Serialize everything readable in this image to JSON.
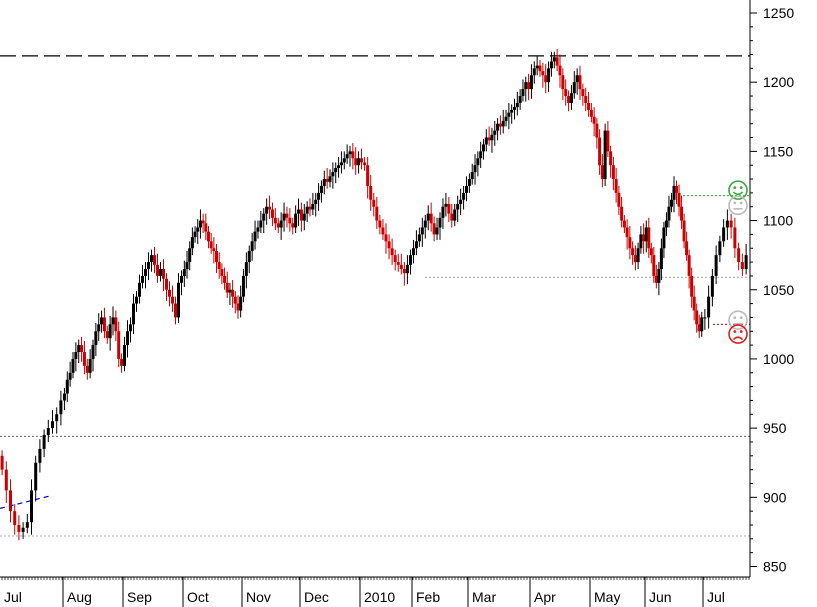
{
  "chart_data": {
    "type": "candlestick",
    "title": "",
    "xlabel": "",
    "ylabel": "",
    "ylim": [
      845,
      1262
    ],
    "y_ticks": [
      850,
      900,
      950,
      1000,
      1050,
      1100,
      1150,
      1200,
      1250
    ],
    "y_tick_labels": [
      "850",
      "900",
      "950",
      "1000",
      "1050",
      "1100",
      "1150",
      "1200",
      "1250"
    ],
    "x_tick_labels": [
      "Jul",
      "Aug",
      "Sep",
      "Oct",
      "Nov",
      "Dec",
      "2010",
      "Feb",
      "Mar",
      "Apr",
      "May",
      "Jun",
      "Jul"
    ],
    "grid": false,
    "colors": {
      "up": "#000000",
      "down": "#cc0000",
      "background": "#ffffff"
    },
    "horizontal_levels": [
      {
        "value": 1219,
        "style": "long-dash",
        "color": "#000000"
      },
      {
        "value": 1118,
        "style": "dotted",
        "color": "#3aa83a"
      },
      {
        "value": 1059,
        "style": "dotted",
        "color": "#aaaaaa"
      },
      {
        "value": 1025,
        "style": "dotted",
        "color": "#cc0000"
      },
      {
        "value": 944,
        "style": "dotted",
        "color": "#666666"
      },
      {
        "value": 872,
        "style": "dotted",
        "color": "#aaaaaa"
      }
    ],
    "trend_segment": {
      "from": 892,
      "to": 901,
      "color": "#0000cc",
      "style": "dashed"
    },
    "markers": [
      {
        "icon": "happy-face-icon",
        "value": 1122,
        "color": "#3aa83a"
      },
      {
        "icon": "neutral-face-icon",
        "value": 1111,
        "color": "#bbbbbb"
      },
      {
        "icon": "neutral-face-icon",
        "value": 1028,
        "color": "#bbbbbb"
      },
      {
        "icon": "sad-face-icon",
        "value": 1018,
        "color": "#dd2222"
      }
    ],
    "series": [
      {
        "month": "Jul",
        "closes": [
          920,
          905,
          890,
          880,
          875,
          878,
          882,
          905,
          925,
          935,
          945,
          950,
          955,
          960,
          970
        ]
      },
      {
        "month": "Aug",
        "closes": [
          975,
          985,
          990,
          1000,
          1005,
          1010,
          1005,
          995,
          990,
          1000,
          1010,
          1020,
          1025,
          1030,
          1020,
          1015,
          1025,
          1030,
          1020,
          1000,
          995
        ]
      },
      {
        "month": "Sep",
        "closes": [
          1010,
          1020,
          1025,
          1040,
          1045,
          1055,
          1060,
          1065,
          1070,
          1075,
          1068,
          1060,
          1065,
          1058,
          1050,
          1045,
          1040,
          1030,
          1055,
          1060
        ]
      },
      {
        "month": "Oct",
        "closes": [
          1065,
          1070,
          1080,
          1088,
          1092,
          1095,
          1100,
          1098,
          1092,
          1085,
          1080,
          1078,
          1070,
          1065,
          1060,
          1055,
          1048,
          1050,
          1045,
          1040,
          1035,
          1045
        ]
      },
      {
        "month": "Nov",
        "closes": [
          1060,
          1070,
          1078,
          1085,
          1092,
          1095,
          1100,
          1105,
          1110,
          1108,
          1102,
          1098,
          1095,
          1100,
          1105,
          1102,
          1098,
          1095,
          1105,
          1108
        ]
      },
      {
        "month": "Dec",
        "closes": [
          1100,
          1105,
          1110,
          1108,
          1112,
          1115,
          1120,
          1125,
          1130,
          1128,
          1132,
          1135,
          1138,
          1140,
          1142,
          1145,
          1148,
          1150,
          1145,
          1140,
          1145
        ]
      },
      {
        "month": "2010",
        "closes": [
          1142,
          1140,
          1125,
          1115,
          1110,
          1100,
          1095,
          1090,
          1085,
          1080,
          1075,
          1070,
          1068,
          1065,
          1062,
          1068,
          1075
        ]
      },
      {
        "month": "Feb",
        "closes": [
          1080,
          1085,
          1090,
          1095,
          1100,
          1105,
          1098,
          1090,
          1095,
          1102,
          1110,
          1112,
          1105,
          1100,
          1108,
          1112,
          1115,
          1120,
          1125
        ]
      },
      {
        "month": "Mar",
        "closes": [
          1130,
          1135,
          1140,
          1145,
          1150,
          1155,
          1160,
          1158,
          1162,
          1165,
          1170,
          1168,
          1172,
          1175,
          1178,
          1180,
          1182,
          1185,
          1190,
          1195,
          1200,
          1195
        ]
      },
      {
        "month": "Apr",
        "closes": [
          1205,
          1210,
          1212,
          1208,
          1205,
          1200,
          1210,
          1215,
          1218,
          1212,
          1205,
          1195,
          1190,
          1185,
          1192,
          1200,
          1205,
          1195,
          1190,
          1185,
          1180
        ]
      },
      {
        "month": "May",
        "closes": [
          1175,
          1170,
          1160,
          1140,
          1130,
          1165,
          1150,
          1140,
          1130,
          1120,
          1110,
          1100,
          1095,
          1088,
          1080,
          1075,
          1070,
          1080,
          1090,
          1085
        ]
      },
      {
        "month": "Jun",
        "closes": [
          1095,
          1080,
          1075,
          1060,
          1055,
          1065,
          1080,
          1095,
          1100,
          1110,
          1115,
          1125,
          1120,
          1110,
          1100,
          1085,
          1075,
          1060,
          1045,
          1035,
          1025,
          1020,
          1030
        ]
      },
      {
        "month": "Jul",
        "closes": [
          1030,
          1045,
          1060,
          1075,
          1085,
          1095,
          1100,
          1095,
          1080,
          1070,
          1065,
          1075
        ]
      }
    ]
  }
}
